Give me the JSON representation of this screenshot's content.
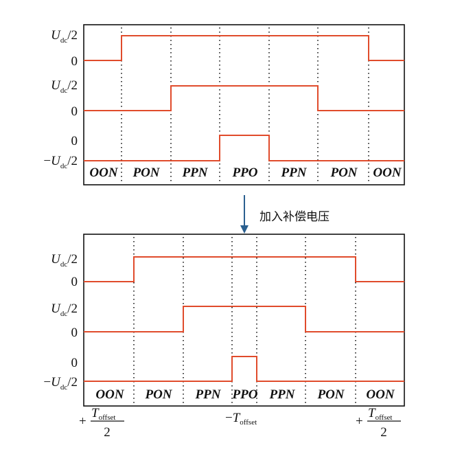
{
  "colors": {
    "wave": "#e04b2b",
    "frame": "#111111",
    "arrow": "#2a5f8f"
  },
  "labels": {
    "high": {
      "italic": "U",
      "sub": "dc",
      "rest": "/2"
    },
    "zero": "0",
    "low": {
      "prefix": "−",
      "italic": "U",
      "sub": "dc",
      "rest": "/2"
    }
  },
  "annotation": "加入补偿电压",
  "top_panel": {
    "states": [
      "OON",
      "PON",
      "PPN",
      "PPO",
      "PPN",
      "PON",
      "OON"
    ],
    "phase_a": {
      "level": "Udc/2",
      "rise_step": 1,
      "fall_step": 7
    },
    "phase_b": {
      "level": "Udc/2",
      "rise_step": 2,
      "fall_step": 5
    },
    "phase_c": {
      "level": "0",
      "rise_step": 3,
      "fall_step": 4
    }
  },
  "bottom_panel": {
    "states": [
      "OON",
      "PON",
      "PPN",
      "PPO",
      "PPN",
      "PON",
      "OON"
    ],
    "phase_a": {
      "level": "Udc/2",
      "shift": "+Toffset/2"
    },
    "phase_b": {
      "level": "Udc/2",
      "shift": "+Toffset/2"
    },
    "phase_c": {
      "level": "0",
      "shift": "−Toffset"
    }
  },
  "offsets": {
    "left": {
      "sign": "+",
      "numerator": "T",
      "numerator_sub": "offset",
      "denominator": "2"
    },
    "middle": {
      "sign": "−",
      "main": "T",
      "sub": "offset"
    },
    "right": {
      "sign": "+",
      "numerator": "T",
      "numerator_sub": "offset",
      "denominator": "2"
    }
  }
}
